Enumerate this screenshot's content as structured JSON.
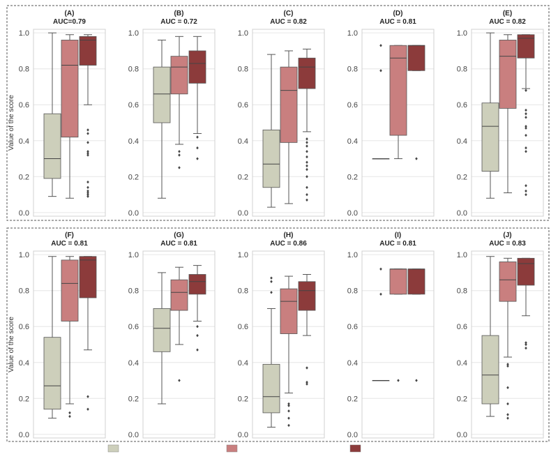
{
  "figure": {
    "ylabel": "Value of the score",
    "legend_colors": [
      "#cdcfbb",
      "#c97f7f",
      "#8c3b3b"
    ]
  },
  "chart_data": [
    {
      "type": "box",
      "label": "(A)",
      "subtitle": "AUC=0.79",
      "ylim": [
        -0.02,
        1.02
      ],
      "yticks": [
        "0.0",
        "0.2",
        "0.4",
        "0.6",
        "0.8",
        "1.0"
      ],
      "boxes": [
        {
          "color": "#cdcfbb",
          "q1": 0.19,
          "median": 0.3,
          "q3": 0.55,
          "whisker_low": 0.09,
          "whisker_high": 1.0,
          "fliers": []
        },
        {
          "color": "#c97f7f",
          "q1": 0.42,
          "median": 0.82,
          "q3": 0.96,
          "whisker_low": 0.08,
          "whisker_high": 0.99,
          "fliers": []
        },
        {
          "color": "#8c3b3b",
          "q1": 0.82,
          "median": 0.96,
          "q3": 0.98,
          "whisker_low": 0.6,
          "whisker_high": 0.99,
          "fliers": [
            0.46,
            0.44,
            0.39,
            0.34,
            0.33,
            0.32,
            0.17,
            0.14,
            0.12,
            0.11,
            0.1,
            0.09
          ]
        }
      ]
    },
    {
      "type": "box",
      "label": "(B)",
      "subtitle": "AUC = 0.72",
      "ylim": [
        -0.02,
        1.02
      ],
      "yticks": [
        "0.0",
        "0.2",
        "0.4",
        "0.6",
        "0.8",
        "1.0"
      ],
      "boxes": [
        {
          "color": "#cdcfbb",
          "q1": 0.5,
          "median": 0.66,
          "q3": 0.81,
          "whisker_low": 0.08,
          "whisker_high": 0.96,
          "fliers": []
        },
        {
          "color": "#c97f7f",
          "q1": 0.66,
          "median": 0.81,
          "q3": 0.87,
          "whisker_low": 0.38,
          "whisker_high": 0.98,
          "fliers": [
            0.34,
            0.32,
            0.25
          ]
        },
        {
          "color": "#8c3b3b",
          "q1": 0.72,
          "median": 0.83,
          "q3": 0.9,
          "whisker_low": 0.44,
          "whisker_high": 0.98,
          "fliers": [
            0.42,
            0.36,
            0.3
          ]
        }
      ]
    },
    {
      "type": "box",
      "label": "(C)",
      "subtitle": "AUC = 0.82",
      "ylim": [
        -0.02,
        1.02
      ],
      "yticks": [
        "0.0",
        "0.2",
        "0.4",
        "0.6",
        "0.8",
        "1.0"
      ],
      "boxes": [
        {
          "color": "#cdcfbb",
          "q1": 0.14,
          "median": 0.27,
          "q3": 0.46,
          "whisker_low": 0.03,
          "whisker_high": 0.88,
          "fliers": []
        },
        {
          "color": "#c97f7f",
          "q1": 0.39,
          "median": 0.68,
          "q3": 0.81,
          "whisker_low": 0.05,
          "whisker_high": 0.9,
          "fliers": []
        },
        {
          "color": "#8c3b3b",
          "q1": 0.69,
          "median": 0.81,
          "q3": 0.86,
          "whisker_low": 0.45,
          "whisker_high": 0.91,
          "fliers": [
            0.41,
            0.39,
            0.37,
            0.34,
            0.31,
            0.28,
            0.26,
            0.24,
            0.2,
            0.14,
            0.1,
            0.07
          ]
        }
      ]
    },
    {
      "type": "box",
      "label": "(D)",
      "subtitle": "AUC = 0.81",
      "ylim": [
        -0.02,
        1.02
      ],
      "yticks": [
        "0.0",
        "0.2",
        "0.4",
        "0.6",
        "0.8",
        "1.0"
      ],
      "boxes": [
        {
          "color": "#cdcfbb",
          "q1": 0.3,
          "median": 0.3,
          "q3": 0.3,
          "whisker_low": 0.3,
          "whisker_high": 0.3,
          "fliers": [
            0.93,
            0.79
          ]
        },
        {
          "color": "#c97f7f",
          "q1": 0.43,
          "median": 0.86,
          "q3": 0.93,
          "whisker_low": 0.3,
          "whisker_high": 0.93,
          "fliers": []
        },
        {
          "color": "#8c3b3b",
          "q1": 0.79,
          "median": 0.93,
          "q3": 0.93,
          "whisker_low": 0.79,
          "whisker_high": 0.93,
          "fliers": [
            0.3
          ]
        }
      ]
    },
    {
      "type": "box",
      "label": "(E)",
      "subtitle": "AUC = 0.82",
      "ylim": [
        -0.02,
        1.02
      ],
      "yticks": [
        "0.0",
        "0.2",
        "0.4",
        "0.6",
        "0.8",
        "1.0"
      ],
      "boxes": [
        {
          "color": "#cdcfbb",
          "q1": 0.23,
          "median": 0.48,
          "q3": 0.61,
          "whisker_low": 0.08,
          "whisker_high": 1.0,
          "fliers": []
        },
        {
          "color": "#c97f7f",
          "q1": 0.58,
          "median": 0.87,
          "q3": 0.96,
          "whisker_low": 0.11,
          "whisker_high": 0.99,
          "fliers": []
        },
        {
          "color": "#8c3b3b",
          "q1": 0.86,
          "median": 0.97,
          "q3": 0.99,
          "whisker_low": 0.69,
          "whisker_high": 0.99,
          "fliers": [
            0.68,
            0.57,
            0.55,
            0.53,
            0.48,
            0.47,
            0.43,
            0.36,
            0.34,
            0.15,
            0.12,
            0.1
          ]
        }
      ]
    },
    {
      "type": "box",
      "label": "(F)",
      "subtitle": "AUC = 0.81",
      "ylim": [
        -0.02,
        1.02
      ],
      "yticks": [
        "0.0",
        "0.2",
        "0.4",
        "0.6",
        "0.8",
        "1.0"
      ],
      "boxes": [
        {
          "color": "#cdcfbb",
          "q1": 0.14,
          "median": 0.27,
          "q3": 0.54,
          "whisker_low": 0.09,
          "whisker_high": 0.99,
          "fliers": []
        },
        {
          "color": "#c97f7f",
          "q1": 0.63,
          "median": 0.84,
          "q3": 0.97,
          "whisker_low": 0.17,
          "whisker_high": 0.99,
          "fliers": [
            0.12,
            0.1
          ]
        },
        {
          "color": "#8c3b3b",
          "q1": 0.76,
          "median": 0.97,
          "q3": 0.99,
          "whisker_low": 0.47,
          "whisker_high": 0.99,
          "fliers": [
            0.21,
            0.14
          ]
        }
      ]
    },
    {
      "type": "box",
      "label": "(G)",
      "subtitle": "AUC = 0.81",
      "ylim": [
        -0.02,
        1.02
      ],
      "yticks": [
        "0.0",
        "0.2",
        "0.4",
        "0.6",
        "0.8",
        "1.0"
      ],
      "boxes": [
        {
          "color": "#cdcfbb",
          "q1": 0.46,
          "median": 0.59,
          "q3": 0.7,
          "whisker_low": 0.17,
          "whisker_high": 0.9,
          "fliers": []
        },
        {
          "color": "#c97f7f",
          "q1": 0.69,
          "median": 0.79,
          "q3": 0.86,
          "whisker_low": 0.5,
          "whisker_high": 0.93,
          "fliers": [
            0.3
          ]
        },
        {
          "color": "#8c3b3b",
          "q1": 0.78,
          "median": 0.85,
          "q3": 0.89,
          "whisker_low": 0.63,
          "whisker_high": 0.94,
          "fliers": [
            0.6,
            0.55,
            0.47
          ]
        }
      ]
    },
    {
      "type": "box",
      "label": "(H)",
      "subtitle": "AUC = 0.86",
      "ylim": [
        -0.02,
        1.02
      ],
      "yticks": [
        "0.0",
        "0.2",
        "0.4",
        "0.6",
        "0.8",
        "1.0"
      ],
      "boxes": [
        {
          "color": "#cdcfbb",
          "q1": 0.12,
          "median": 0.21,
          "q3": 0.39,
          "whisker_low": 0.04,
          "whisker_high": 0.7,
          "fliers": [
            0.87,
            0.85,
            0.79
          ]
        },
        {
          "color": "#c97f7f",
          "q1": 0.56,
          "median": 0.74,
          "q3": 0.81,
          "whisker_low": 0.23,
          "whisker_high": 0.88,
          "fliers": [
            0.17,
            0.16,
            0.13,
            0.09,
            0.05
          ]
        },
        {
          "color": "#8c3b3b",
          "q1": 0.69,
          "median": 0.8,
          "q3": 0.85,
          "whisker_low": 0.55,
          "whisker_high": 0.89,
          "fliers": [
            0.37,
            0.29,
            0.28
          ]
        }
      ]
    },
    {
      "type": "box",
      "label": "(I)",
      "subtitle": "AUC = 0.81",
      "ylim": [
        -0.02,
        1.02
      ],
      "yticks": [
        "0.0",
        "0.2",
        "0.4",
        "0.6",
        "0.8",
        "1.0"
      ],
      "boxes": [
        {
          "color": "#cdcfbb",
          "q1": 0.3,
          "median": 0.3,
          "q3": 0.3,
          "whisker_low": 0.3,
          "whisker_high": 0.3,
          "fliers": [
            0.92,
            0.78
          ]
        },
        {
          "color": "#c97f7f",
          "q1": 0.78,
          "median": 0.92,
          "q3": 0.92,
          "whisker_low": 0.78,
          "whisker_high": 0.92,
          "fliers": [
            0.3
          ]
        },
        {
          "color": "#8c3b3b",
          "q1": 0.78,
          "median": 0.92,
          "q3": 0.92,
          "whisker_low": 0.78,
          "whisker_high": 0.92,
          "fliers": [
            0.3
          ]
        }
      ]
    },
    {
      "type": "box",
      "label": "(J)",
      "subtitle": "AUC = 0.83",
      "ylim": [
        -0.02,
        1.02
      ],
      "yticks": [
        "0.0",
        "0.2",
        "0.4",
        "0.6",
        "0.8",
        "1.0"
      ],
      "boxes": [
        {
          "color": "#cdcfbb",
          "q1": 0.17,
          "median": 0.33,
          "q3": 0.55,
          "whisker_low": 0.1,
          "whisker_high": 0.99,
          "fliers": []
        },
        {
          "color": "#c97f7f",
          "q1": 0.74,
          "median": 0.86,
          "q3": 0.96,
          "whisker_low": 0.43,
          "whisker_high": 0.98,
          "fliers": [
            0.39,
            0.38,
            0.26,
            0.17,
            0.11,
            0.09
          ]
        },
        {
          "color": "#8c3b3b",
          "q1": 0.83,
          "median": 0.95,
          "q3": 0.98,
          "whisker_low": 0.66,
          "whisker_high": 0.98,
          "fliers": [
            0.51,
            0.5,
            0.48
          ]
        }
      ]
    }
  ]
}
